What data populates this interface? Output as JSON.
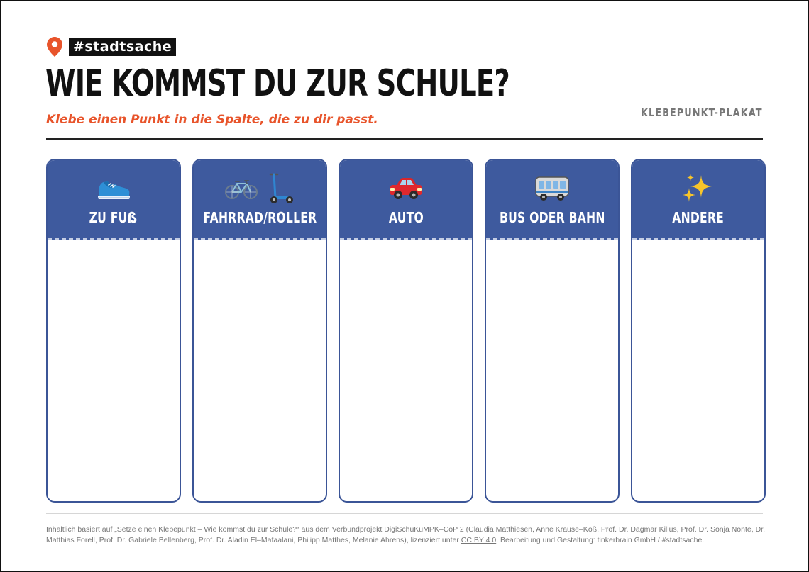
{
  "brand": {
    "tag": "#stadtsache",
    "icon": "location-pin-icon",
    "accent": "#e8542b"
  },
  "header": {
    "title": "WIE KOMMST DU ZUR SCHULE?",
    "subtitle": "Klebe einen Punkt in die Spalte, die zu dir passt.",
    "poster_type": "KLEBEPUNKT-PLAKAT"
  },
  "colors": {
    "column_header": "#3e5a9e",
    "column_border": "#3b5597",
    "subtitle": "#e8542b"
  },
  "columns": [
    {
      "label": "ZU FUẞ",
      "icon": "sneaker-icon"
    },
    {
      "label": "FAHRRAD/ROLLER",
      "icon": "bicycle-and-scooter-icon"
    },
    {
      "label": "AUTO",
      "icon": "car-icon"
    },
    {
      "label": "BUS ODER BAHN",
      "icon": "bus-icon"
    },
    {
      "label": "ANDERE",
      "icon": "sparkles-icon"
    }
  ],
  "footer": {
    "text_before": "Inhaltlich basiert auf „Setze einen Klebepunkt – Wie kommst du zur Schule?“ aus dem Verbundprojekt DigiSchuKuMPK–CoP 2 (Claudia Matthiesen, Anne Krause–Koß, Prof. Dr. Dagmar Killus, Prof. Dr. Sonja Nonte, Dr. Matthias Forell, Prof. Dr. Gabriele Bellenberg, Prof. Dr. Aladin El–Mafaalani, Philipp Matthes, Melanie Ahrens), lizenziert unter ",
    "license_link": "CC BY 4.0",
    "text_after": ". Bearbeitung und Gestaltung: tinkerbrain GmbH / #stadtsache."
  }
}
